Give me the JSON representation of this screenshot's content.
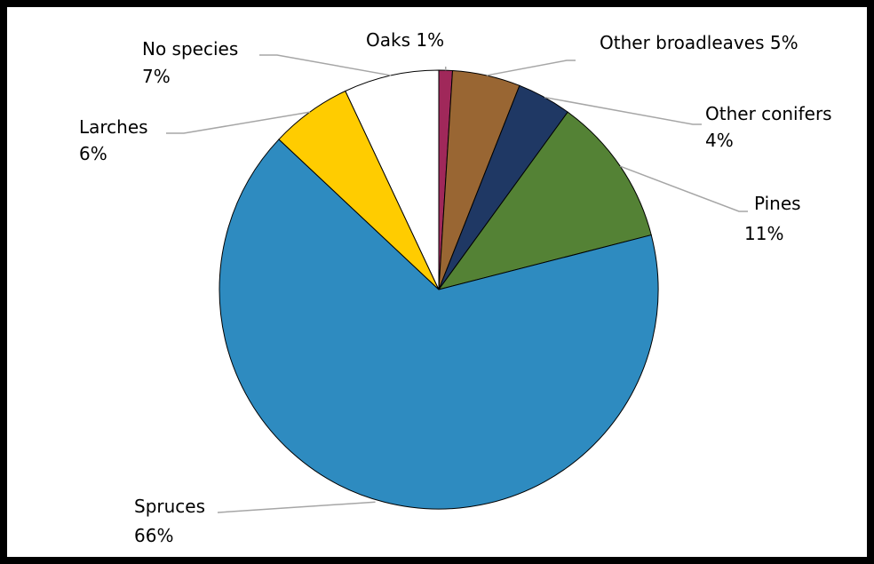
{
  "chart_data": {
    "type": "pie",
    "title": "",
    "start_angle_deg": 0,
    "direction": "clockwise",
    "slices": [
      {
        "label": "Oaks",
        "value": 1,
        "value_label": "1%",
        "color": "#a0285a"
      },
      {
        "label": "Other broadleaves",
        "value": 5,
        "value_label": "5%",
        "color": "#996633"
      },
      {
        "label": "Other conifers",
        "value": 4,
        "value_label": "4%",
        "color": "#1f3864"
      },
      {
        "label": "Pines",
        "value": 11,
        "value_label": "11%",
        "color": "#548235"
      },
      {
        "label": "Spruces",
        "value": 66,
        "value_label": "66%",
        "color": "#2e8bc0"
      },
      {
        "label": "Larches",
        "value": 6,
        "value_label": "6%",
        "color": "#ffcc00"
      },
      {
        "label": "No species",
        "value": 7,
        "value_label": "7%",
        "color": "#ffffff"
      }
    ]
  }
}
